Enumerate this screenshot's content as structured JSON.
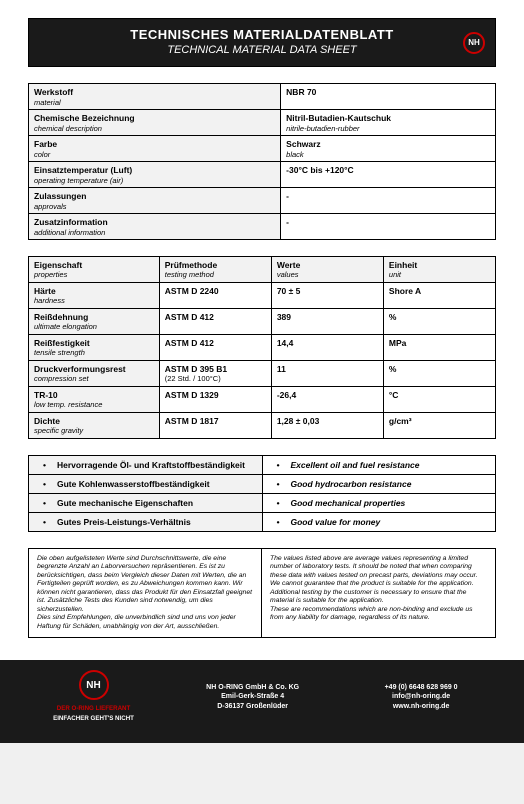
{
  "header": {
    "title_de": "TECHNISCHES MATERIALDATENBLATT",
    "title_en": "TECHNICAL MATERIAL DATA SHEET",
    "logo_text": "NH",
    "logo_border_color": "#cc0000"
  },
  "table1": [
    {
      "label_de": "Werkstoff",
      "label_en": "material",
      "value_de": "NBR 70",
      "value_en": ""
    },
    {
      "label_de": "Chemische Bezeichnung",
      "label_en": "chemical description",
      "value_de": "Nitril-Butadien-Kautschuk",
      "value_en": "nitrile-butadien-rubber"
    },
    {
      "label_de": "Farbe",
      "label_en": "color",
      "value_de": "Schwarz",
      "value_en": "black"
    },
    {
      "label_de": "Einsatztemperatur (Luft)",
      "label_en": "operating temperature (air)",
      "value_de": "-30°C bis +120°C",
      "value_en": ""
    },
    {
      "label_de": "Zulassungen",
      "label_en": "approvals",
      "value_de": "-",
      "value_en": ""
    },
    {
      "label_de": "Zusatzinformation",
      "label_en": "additional information",
      "value_de": "-",
      "value_en": ""
    }
  ],
  "table2": {
    "headers": [
      {
        "de": "Eigenschaft",
        "en": "properties"
      },
      {
        "de": "Prüfmethode",
        "en": "testing method"
      },
      {
        "de": "Werte",
        "en": "values"
      },
      {
        "de": "Einheit",
        "en": "unit"
      }
    ],
    "rows": [
      {
        "prop_de": "Härte",
        "prop_en": "hardness",
        "method": "ASTM D 2240",
        "method_note": "",
        "value": "70 ± 5",
        "unit": "Shore A"
      },
      {
        "prop_de": "Reißdehnung",
        "prop_en": "ultimate elongation",
        "method": "ASTM D 412",
        "method_note": "",
        "value": "389",
        "unit": "%"
      },
      {
        "prop_de": "Reißfestigkeit",
        "prop_en": "tensile strength",
        "method": "ASTM D 412",
        "method_note": "",
        "value": "14,4",
        "unit": "MPa"
      },
      {
        "prop_de": "Druckverformungsrest",
        "prop_en": "compression set",
        "method": "ASTM D 395 B1",
        "method_note": "(22 Std. / 100°C)",
        "value": "11",
        "unit": "%"
      },
      {
        "prop_de": "TR-10",
        "prop_en": "low temp. resistance",
        "method": "ASTM D 1329",
        "method_note": "",
        "value": "-26,4",
        "unit": "°C"
      },
      {
        "prop_de": "Dichte",
        "prop_en": "specific gravity",
        "method": "ASTM D 1817",
        "method_note": "",
        "value": "1,28 ± 0,03",
        "unit": "g/cm³"
      }
    ],
    "col_widths": [
      "28%",
      "24%",
      "24%",
      "24%"
    ]
  },
  "table3": [
    {
      "de": "Hervorragende Öl- und Kraftstoffbeständigkeit",
      "en": "Excellent oil and fuel resistance"
    },
    {
      "de": "Gute Kohlenwasserstoffbeständigkeit",
      "en": "Good hydrocarbon resistance"
    },
    {
      "de": "Gute mechanische Eigenschaften",
      "en": "Good mechanical properties"
    },
    {
      "de": "Gutes Preis-Leistungs-Verhältnis",
      "en": "Good value for money"
    }
  ],
  "disclaimer": {
    "de": "Die oben aufgelisteten Werte sind Durchschnittswerte, die eine begrenzte Anzahl an Laborversuchen repräsentieren. Es ist zu berücksichtigen, dass beim Vergleich dieser Daten mit Werten, die an Fertigteilen geprüft worden, es zu Abweichungen kommen kann. Wir können nicht garantieren, dass das Produkt für den Einsatzfall geeignet ist. Zusätzliche Tests des Kunden sind notwendig, um dies sicherzustellen.\nDies sind Empfehlungen, die unverbindlich sind und uns von jeder Haftung für Schäden, unabhängig von der Art, ausschließen.",
    "en": "The values listed above are average values representing a limited number of laboratory tests. It should be noted that when comparing these data with values tested on precast parts, deviations may occur. We cannot guarantee that the product is suitable for the application. Additional testing by the customer is necessary to ensure that the material is suitable for the application.\nThese are recommendations which are non-binding and exclude us from any liability for damage, regardless of its nature."
  },
  "footer": {
    "logo_text": "NH",
    "slogan1": "DER O-RING LIEFERANT",
    "slogan2": "EINFACHER GEHT'S NICHT",
    "company": "NH O-RING GmbH & Co. KG",
    "street": "Emil-Gerk-Straße 4",
    "city": "D-36137 Großenlüder",
    "phone": "+49 (0) 6648 628 969 0",
    "email": "info@nh-oring.de",
    "web": "www.nh-oring.de"
  },
  "colors": {
    "header_bg": "#1a1a1a",
    "header_text": "#ffffff",
    "shade_bg": "#f2f2f2",
    "border": "#000000",
    "accent": "#cc0000"
  }
}
